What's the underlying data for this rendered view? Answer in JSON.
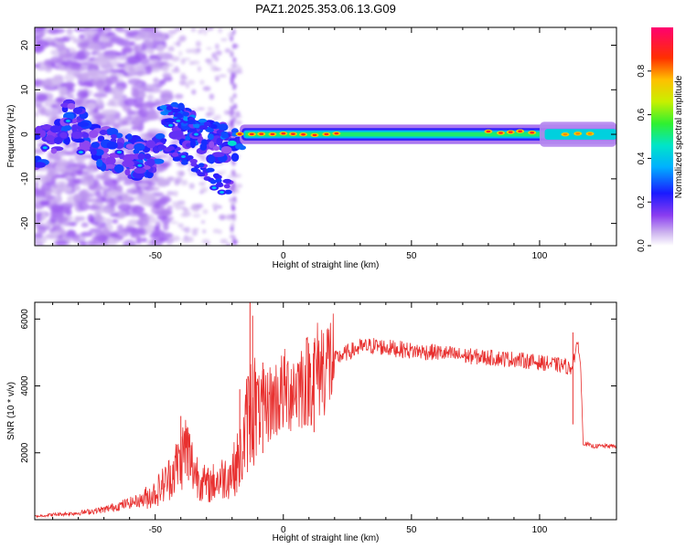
{
  "title": "PAZ1.2025.353.06.13.G09",
  "chart_data": [
    {
      "type": "heatmap",
      "name": "spectrogram",
      "xlabel": "Height of straight line (km)",
      "ylabel": "Frequency (Hz)",
      "xlim": [
        -97,
        130
      ],
      "ylim": [
        -25,
        24
      ],
      "xticks": [
        -50,
        0,
        50,
        100
      ],
      "yticks": [
        -20,
        -10,
        0,
        10,
        20
      ],
      "colorbar": {
        "label": "Normalized spectral amplitude",
        "range": [
          0,
          1
        ],
        "ticks": [
          0.0,
          0.2,
          0.4,
          0.6,
          0.8
        ],
        "tick_labels": [
          "0.0",
          "0.2",
          "0.4",
          "0.6",
          "0.8"
        ]
      },
      "dominant_frequency_track": {
        "x": [
          -95,
          -90,
          -85,
          -80,
          -75,
          -70,
          -65,
          -60,
          -55,
          -50,
          -45,
          -40,
          -35,
          -30,
          -25,
          -20,
          -17,
          -15,
          -10,
          -5,
          0,
          10,
          20,
          40,
          60,
          80,
          100,
          110,
          115,
          130
        ],
        "y": [
          -3,
          -2,
          3,
          2,
          -1,
          -3,
          -4,
          -5,
          -6,
          -5,
          5,
          3,
          1,
          -1,
          -2,
          -2,
          -3,
          0,
          0,
          0,
          0,
          0.5,
          0,
          0,
          0,
          0,
          0.5,
          0,
          0,
          0
        ]
      },
      "high_amplitude_segments": [
        {
          "x_start": -17,
          "x_end": 25,
          "y": 0,
          "level": 0.9
        },
        {
          "x_start": 80,
          "x_end": 100,
          "y": 0.5,
          "level": 0.9
        },
        {
          "x_start": 110,
          "x_end": 120,
          "y": 0,
          "level": 0.8
        }
      ]
    },
    {
      "type": "line",
      "name": "snr",
      "xlabel": "Height of straight line (km)",
      "ylabel": "SNR (10 * v/v)",
      "xlim": [
        -97,
        130
      ],
      "ylim": [
        0,
        6500
      ],
      "xticks": [
        -50,
        0,
        50,
        100
      ],
      "yticks": [
        2000,
        4000,
        6000
      ],
      "color": "#e8302f",
      "series": [
        {
          "name": "SNR",
          "x": [
            -97,
            -90,
            -80,
            -70,
            -60,
            -55,
            -50,
            -45,
            -40,
            -38,
            -35,
            -30,
            -25,
            -20,
            -16,
            -14,
            -12,
            -10,
            -5,
            0,
            5,
            10,
            15,
            20,
            25,
            30,
            35,
            40,
            45,
            50,
            60,
            70,
            80,
            90,
            100,
            105,
            110,
            112,
            114,
            115,
            116,
            117,
            120,
            125,
            130
          ],
          "y": [
            100,
            150,
            200,
            300,
            500,
            600,
            800,
            1200,
            1800,
            2200,
            1500,
            1000,
            1200,
            1400,
            2000,
            3000,
            3500,
            3200,
            3500,
            3800,
            4000,
            4200,
            4600,
            4800,
            5000,
            5150,
            5200,
            5150,
            5100,
            5050,
            5000,
            4900,
            4850,
            4800,
            4700,
            4650,
            4600,
            4500,
            5000,
            5300,
            4600,
            2300,
            2200,
            2200,
            2200
          ]
        }
      ],
      "spikes": [
        {
          "x": -40,
          "y": 3100
        },
        {
          "x": -37,
          "y": 2600
        },
        {
          "x": -17,
          "y": 3900
        },
        {
          "x": -13,
          "y": 6500
        },
        {
          "x": -12,
          "y": 6100
        },
        {
          "x": -8,
          "y": 4700
        },
        {
          "x": 12,
          "y": 5300
        },
        {
          "x": 113,
          "y": 5600
        }
      ]
    }
  ]
}
